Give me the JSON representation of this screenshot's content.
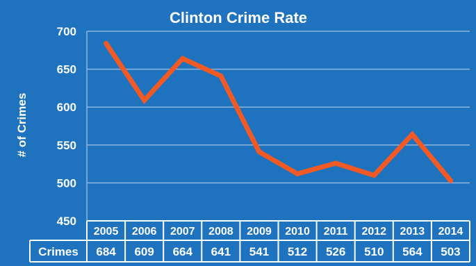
{
  "chart_data": {
    "type": "line",
    "title": "Clinton Crime Rate",
    "ylabel": "# of Crimes",
    "xlabel": "",
    "ylim": [
      450,
      700
    ],
    "yticks": [
      450,
      500,
      550,
      600,
      650,
      700
    ],
    "categories": [
      "2005",
      "2006",
      "2007",
      "2008",
      "2009",
      "2010",
      "2011",
      "2012",
      "2013",
      "2014"
    ],
    "series": [
      {
        "name": "Crimes",
        "values": [
          684,
          609,
          664,
          641,
          541,
          512,
          526,
          510,
          564,
          503
        ]
      }
    ],
    "grid": true,
    "legend": "none",
    "data_table": true,
    "colors": {
      "background": "#1f73be",
      "line": "#f15a24",
      "grid": "#8fb5dc",
      "text": "#ffffff"
    }
  }
}
